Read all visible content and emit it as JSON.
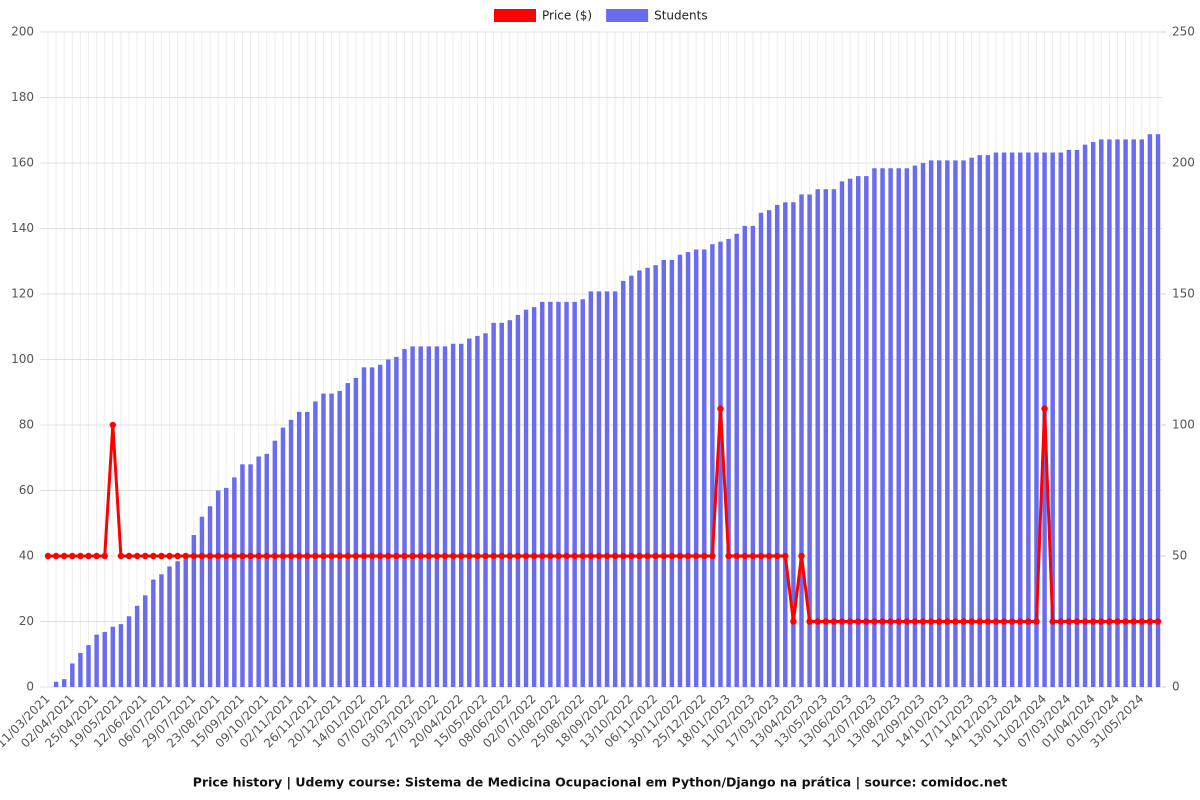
{
  "chart_data": {
    "type": "combo",
    "title": "Price history | Udemy course: Sistema de Medicina Ocupacional em Python/Django na prática | source: comidoc.net",
    "categories": [
      "11/03/2021",
      null,
      null,
      "02/04/2021",
      null,
      null,
      "25/04/2021",
      null,
      null,
      "19/05/2021",
      null,
      null,
      "12/06/2021",
      null,
      null,
      "06/07/2021",
      null,
      null,
      "29/07/2021",
      null,
      null,
      "23/08/2021",
      null,
      null,
      "15/09/2021",
      null,
      null,
      "09/10/2021",
      null,
      null,
      "02/11/2021",
      null,
      null,
      "26/11/2021",
      null,
      null,
      "20/12/2021",
      null,
      null,
      "14/01/2022",
      null,
      null,
      "07/02/2022",
      null,
      null,
      "03/03/2022",
      null,
      null,
      "27/03/2022",
      null,
      null,
      "20/04/2022",
      null,
      null,
      "15/05/2022",
      null,
      null,
      "08/06/2022",
      null,
      null,
      "02/07/2022",
      null,
      null,
      "01/08/2022",
      null,
      null,
      "25/08/2022",
      null,
      null,
      "18/09/2022",
      null,
      null,
      "13/10/2022",
      null,
      null,
      "06/11/2022",
      null,
      null,
      "30/11/2022",
      null,
      null,
      "25/12/2022",
      null,
      null,
      "18/01/2023",
      null,
      null,
      "11/02/2023",
      null,
      null,
      "17/03/2023",
      null,
      null,
      "13/04/2023",
      null,
      null,
      "13/05/2023",
      null,
      null,
      "13/06/2023",
      null,
      null,
      "12/07/2023",
      null,
      null,
      "13/08/2023",
      null,
      null,
      "12/09/2023",
      null,
      null,
      "14/10/2023",
      null,
      null,
      "17/11/2023",
      null,
      null,
      "14/12/2023",
      null,
      null,
      "13/01/2024",
      null,
      null,
      "11/02/2024",
      null,
      null,
      "07/03/2024",
      null,
      null,
      "01/04/2024",
      null,
      null,
      "01/05/2024",
      null,
      null,
      "31/05/2024",
      null,
      null
    ],
    "series": [
      {
        "name": "Price ($)",
        "type": "line",
        "color": "#ff0000",
        "axis": "y",
        "values": [
          40,
          40,
          40,
          40,
          40,
          40,
          40,
          40,
          80,
          40,
          40,
          40,
          40,
          40,
          40,
          40,
          40,
          40,
          40,
          40,
          40,
          40,
          40,
          40,
          40,
          40,
          40,
          40,
          40,
          40,
          40,
          40,
          40,
          40,
          40,
          40,
          40,
          40,
          40,
          40,
          40,
          40,
          40,
          40,
          40,
          40,
          40,
          40,
          40,
          40,
          40,
          40,
          40,
          40,
          40,
          40,
          40,
          40,
          40,
          40,
          40,
          40,
          40,
          40,
          40,
          40,
          40,
          40,
          40,
          40,
          40,
          40,
          40,
          40,
          40,
          40,
          40,
          40,
          40,
          40,
          40,
          40,
          40,
          85,
          40,
          40,
          40,
          40,
          40,
          40,
          40,
          40,
          20,
          40,
          20,
          20,
          20,
          20,
          20,
          20,
          20,
          20,
          20,
          20,
          20,
          20,
          20,
          20,
          20,
          20,
          20,
          20,
          20,
          20,
          20,
          20,
          20,
          20,
          20,
          20,
          20,
          20,
          20,
          85,
          20,
          20,
          20,
          20,
          20,
          20,
          20,
          20,
          20,
          20,
          20,
          20,
          20,
          20
        ]
      },
      {
        "name": "Students",
        "type": "bar",
        "color": "#6a6cf0",
        "axis": "y2",
        "values": [
          0,
          2,
          3,
          9,
          13,
          16,
          20,
          21,
          23,
          24,
          27,
          31,
          35,
          41,
          43,
          46,
          48,
          50,
          58,
          65,
          69,
          75,
          76,
          80,
          85,
          85,
          88,
          89,
          94,
          99,
          102,
          105,
          105,
          109,
          112,
          112,
          113,
          116,
          118,
          122,
          122,
          123,
          125,
          126,
          129,
          130,
          130,
          130,
          130,
          130,
          131,
          131,
          133,
          134,
          135,
          139,
          139,
          140,
          142,
          144,
          145,
          147,
          147,
          147,
          147,
          147,
          148,
          151,
          151,
          151,
          151,
          155,
          157,
          159,
          160,
          161,
          163,
          163,
          165,
          166,
          167,
          167,
          169,
          170,
          171,
          173,
          176,
          176,
          181,
          182,
          184,
          185,
          185,
          188,
          188,
          190,
          190,
          190,
          193,
          194,
          195,
          195,
          198,
          198,
          198,
          198,
          198,
          199,
          200,
          201,
          201,
          201,
          201,
          201,
          202,
          203,
          203,
          204,
          204,
          204,
          204,
          204,
          204,
          204,
          204,
          204,
          205,
          205,
          207,
          208,
          209,
          209,
          209,
          209,
          209,
          209,
          211,
          211
        ]
      }
    ],
    "ylim": [
      0,
      200
    ],
    "yticks": [
      0,
      20,
      40,
      60,
      80,
      100,
      120,
      140,
      160,
      180,
      200
    ],
    "y2lim": [
      0,
      250
    ],
    "y2ticks": [
      0,
      50,
      100,
      150,
      200,
      250
    ],
    "grid": true
  }
}
